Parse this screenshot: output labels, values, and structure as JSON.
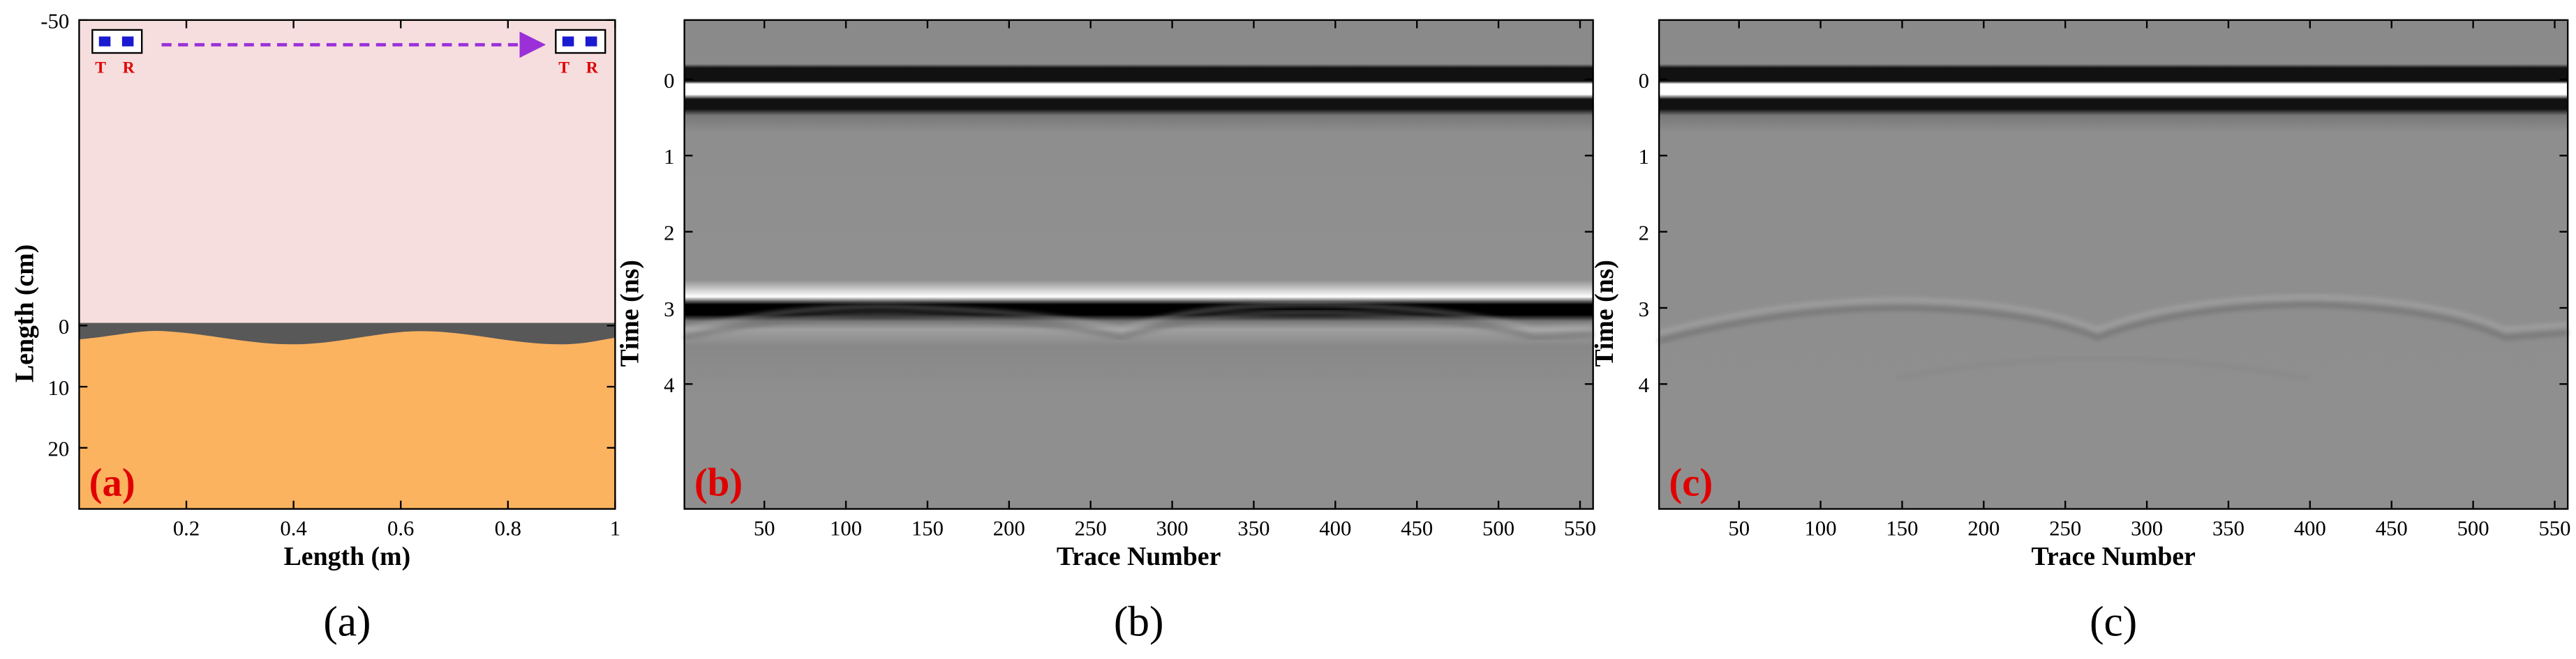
{
  "chart_data": [
    {
      "type": "image",
      "panel_label": "(a)",
      "caption": "(a)",
      "xlabel": "Length (m)",
      "ylabel": "Length (cm)",
      "xlim": [
        0,
        1
      ],
      "ylim": [
        -50,
        30
      ],
      "y_inverted": true,
      "xticks": [
        0.2,
        0.4,
        0.6,
        0.8,
        1
      ],
      "yticks": [
        -50,
        0,
        10,
        20
      ],
      "annotations": [
        "T",
        "R",
        "T",
        "R"
      ]
    },
    {
      "type": "image",
      "panel_label": "(b)",
      "caption": "(b)",
      "xlabel": "Trace Number",
      "ylabel": "Time (ns)",
      "xlim": [
        1,
        558
      ],
      "ylim": [
        -0.78,
        5.64
      ],
      "y_inverted": true,
      "xticks": [
        50,
        100,
        150,
        200,
        250,
        300,
        350,
        400,
        450,
        500,
        550
      ],
      "yticks": [
        0,
        1,
        2,
        3,
        4
      ]
    },
    {
      "type": "image",
      "panel_label": "(c)",
      "caption": "(c)",
      "xlabel": "Trace Number",
      "ylabel": "Time (ns)",
      "xlim": [
        1,
        558
      ],
      "ylim": [
        -0.78,
        5.64
      ],
      "y_inverted": true,
      "xticks": [
        50,
        100,
        150,
        200,
        250,
        300,
        350,
        400,
        450,
        500,
        550
      ],
      "yticks": [
        0,
        1,
        2,
        3,
        4
      ]
    }
  ]
}
